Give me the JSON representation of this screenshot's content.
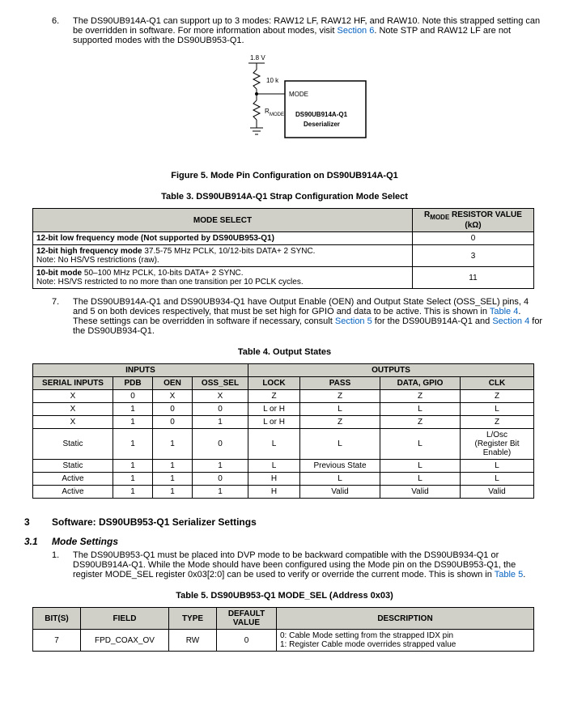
{
  "item6": {
    "num": "6.",
    "text_a": "The DS90UB914A-Q1 can support up to 3 modes: RAW12 LF, RAW12 HF, and RAW10. Note this strapped setting can be overridden in software. For more information about modes, visit ",
    "link_a": "Section 6",
    "text_b": ". Note STP and RAW12 LF are not supported modes with the DS90UB953-Q1."
  },
  "figure5": {
    "caption": "Figure 5. Mode Pin Configuration on DS90UB914A-Q1",
    "v18": "1.8 V",
    "r10k": "10 k",
    "mode": "MODE",
    "rmode": "R",
    "rmode_sub": "MODE",
    "chip_a": "DS90UB914A-Q1",
    "chip_b": "Deserializer"
  },
  "table3": {
    "caption": "Table 3. DS90UB914A-Q1 Strap Configuration Mode Select",
    "h_mode": "MODE SELECT",
    "h_res_a": "R",
    "h_res_sub": "MODE",
    "h_res_b": " RESISTOR VALUE (kΩ)",
    "rows": [
      {
        "mode": "12-bit low frequency mode (Not supported by DS90UB953-Q1)",
        "val": "0",
        "bold": true,
        "note": ""
      },
      {
        "mode": "12-bit high frequency mode",
        "rest": " 37.5-75 MHz PCLK, 10/12-bits DATA+ 2 SYNC.",
        "note": "Note: No HS/VS restrictions (raw).",
        "val": "3"
      },
      {
        "mode": "10-bit mode",
        "rest": " 50–100 MHz PCLK, 10-bits DATA+ 2 SYNC.",
        "note": "Note: HS/VS restricted to no more than one transition per 10 PCLK cycles.",
        "val": "11"
      }
    ]
  },
  "item7": {
    "num": "7.",
    "text_a": "The DS90UB914A-Q1 and DS90UB934-Q1 have Output Enable (OEN) and Output State Select (OSS_SEL) pins, 4 and 5 on both devices respectively, that must be set high for GPIO and data to be active. This is shown in ",
    "link_a": "Table 4",
    "text_b": ". These settings can be overridden in software if necessary, consult ",
    "link_b": "Section 5",
    "text_c": " for the DS90UB914A-Q1 and ",
    "link_c": "Section 4",
    "text_d": " for the DS90UB934-Q1."
  },
  "table4": {
    "caption": "Table 4. Output States",
    "h_inputs": "INPUTS",
    "h_outputs": "OUTPUTS",
    "cols": [
      "SERIAL INPUTS",
      "PDB",
      "OEN",
      "OSS_SEL",
      "LOCK",
      "PASS",
      "DATA, GPIO",
      "CLK"
    ],
    "rows": [
      [
        "X",
        "0",
        "X",
        "X",
        "Z",
        "Z",
        "Z",
        "Z"
      ],
      [
        "X",
        "1",
        "0",
        "0",
        "L or H",
        "L",
        "L",
        "L"
      ],
      [
        "X",
        "1",
        "0",
        "1",
        "L or H",
        "Z",
        "Z",
        "Z"
      ],
      [
        "Static",
        "1",
        "1",
        "0",
        "L",
        "L",
        "L",
        "L/Osc\n(Register Bit Enable)"
      ],
      [
        "Static",
        "1",
        "1",
        "1",
        "L",
        "Previous State",
        "L",
        "L"
      ],
      [
        "Active",
        "1",
        "1",
        "0",
        "H",
        "L",
        "L",
        "L"
      ],
      [
        "Active",
        "1",
        "1",
        "1",
        "H",
        "Valid",
        "Valid",
        "Valid"
      ]
    ]
  },
  "section3": {
    "num": "3",
    "title": "Software: DS90UB953-Q1 Serializer Settings"
  },
  "section31": {
    "num": "3.1",
    "title": "Mode Settings"
  },
  "item31_1": {
    "num": "1.",
    "text_a": "The DS90UB953-Q1 must be placed into DVP mode to be backward compatible with the DS90UB934-Q1 or DS90UB914A-Q1. While the Mode should have been configured using the Mode pin on the DS90UB953-Q1, the register MODE_SEL register 0x03[2:0] can be used to verify or override the current mode. This is shown in ",
    "link_a": "Table 5",
    "text_b": "."
  },
  "table5": {
    "caption": "Table 5. DS90UB953-Q1 MODE_SEL (Address 0x03)",
    "cols": [
      "BIT(S)",
      "FIELD",
      "TYPE",
      "DEFAULT VALUE",
      "DESCRIPTION"
    ],
    "rows": [
      {
        "bit": "7",
        "field": "FPD_COAX_OV",
        "type": "RW",
        "def": "0",
        "desc": "0: Cable Mode setting from the strapped IDX pin\n1: Register Cable mode overrides strapped value"
      }
    ]
  }
}
